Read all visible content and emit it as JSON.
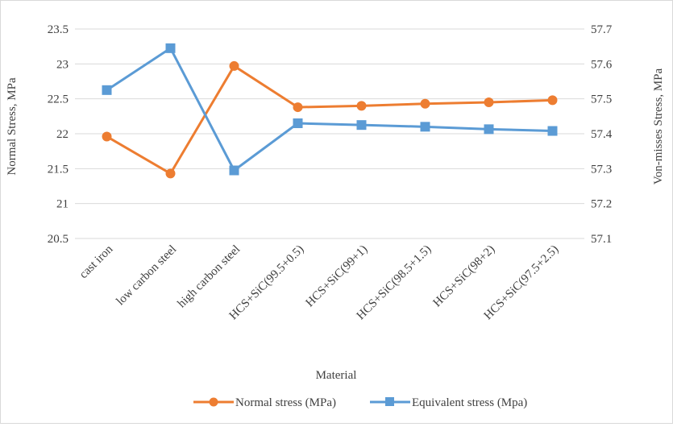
{
  "chart_data": {
    "type": "line",
    "title": "",
    "xlabel": "Material",
    "ylabel_left": "Normal Stress, MPa",
    "ylabel_right": "Von-misses Stress, MPa",
    "categories": [
      "cast iron",
      "low carbon steel",
      "high carbon steel",
      "HCS+SiC(99.5+0.5)",
      "HCS+SiC(99+1)",
      "HCS+SiC(98.5+1.5)",
      "HCS+SiC(98+2)",
      "HCS+SiC(97.5+2.5)"
    ],
    "ylim_left": [
      20.5,
      23.5
    ],
    "ylim_right": [
      57.1,
      57.7
    ],
    "yticks_left": [
      "20.5",
      "21",
      "21.5",
      "22",
      "22.5",
      "23",
      "23.5"
    ],
    "yticks_right": [
      "57.1",
      "57.2",
      "57.3",
      "57.4",
      "57.5",
      "57.6",
      "57.7"
    ],
    "grid": true,
    "legend_position": "bottom",
    "series": [
      {
        "name": "Normal stress (MPa)",
        "axis": "left",
        "color": "#ED7D31",
        "marker": "circle",
        "values": [
          21.96,
          21.43,
          22.97,
          22.38,
          22.4,
          22.43,
          22.45,
          22.48
        ]
      },
      {
        "name": "Equivalent stress (Mpa)",
        "axis": "right",
        "color": "#5B9BD5",
        "marker": "square",
        "values": [
          57.525,
          57.645,
          57.295,
          57.43,
          57.425,
          57.42,
          57.413,
          57.408
        ]
      }
    ]
  }
}
